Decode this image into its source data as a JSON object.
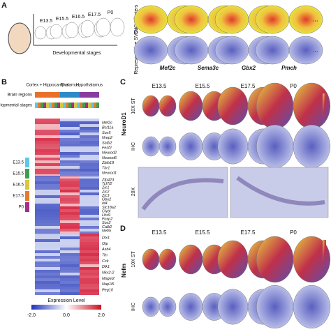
{
  "panel_a": {
    "label": "A",
    "stages": [
      "E13.5",
      "E15.5",
      "E16.5",
      "E17.5",
      "P0"
    ],
    "stages_title": "Developmental stages",
    "row_labels": [
      "SVG Clusters",
      "Representative SVGs"
    ],
    "genes": [
      "Mef2c",
      "Sema3c",
      "Gbx2",
      "Pmch"
    ],
    "ellipsis": "..."
  },
  "panel_b": {
    "label": "B",
    "regions": [
      "Cortex + Hippocampus",
      "Thalamus",
      "Hypothalamus"
    ],
    "track_labels": [
      "Brain regions",
      "Developmental stages"
    ],
    "stage_legend": [
      "E13.5",
      "E15.5",
      "E16.5",
      "E17.5",
      "P0"
    ],
    "genes": [
      "Mef2c",
      "Bcl11a",
      "Sox5",
      "Nrep2",
      "Satb2",
      "Fezf2",
      "Neurod2",
      "Neurod6",
      "Zbtb18",
      "Tbr1",
      "Neurod1",
      "Zfp423",
      "Tcf7l2",
      "Zic1",
      "Zic2",
      "Zic3",
      "Gbx2",
      "Id4",
      "Slc18a2",
      "Clybl",
      "Lhx9",
      "Foxp2",
      "Sox2",
      "Calb2",
      "Nefm",
      "Dlx1",
      "Otp",
      "Asb4",
      "Trh",
      "Cck",
      "Dlk1",
      "Nkx2-2",
      "Magel2",
      "Nap1l5",
      "Peg10"
    ],
    "colorbar_title": "Expression Level",
    "colorbar_ticks": [
      "-2.0",
      "0.0",
      "2.0"
    ]
  },
  "panel_c": {
    "label": "C",
    "stages": [
      "E13.5",
      "E15.5",
      "E17.5",
      "P0"
    ],
    "row_labels": [
      "10X ST",
      "IHC",
      "20X"
    ],
    "marker": "NeuroD1"
  },
  "panel_d": {
    "label": "D",
    "stages": [
      "E13.5",
      "E15.5",
      "E17.5",
      "P0"
    ],
    "row_labels": [
      "10X ST",
      "IHC"
    ],
    "marker": "Nefm"
  }
}
